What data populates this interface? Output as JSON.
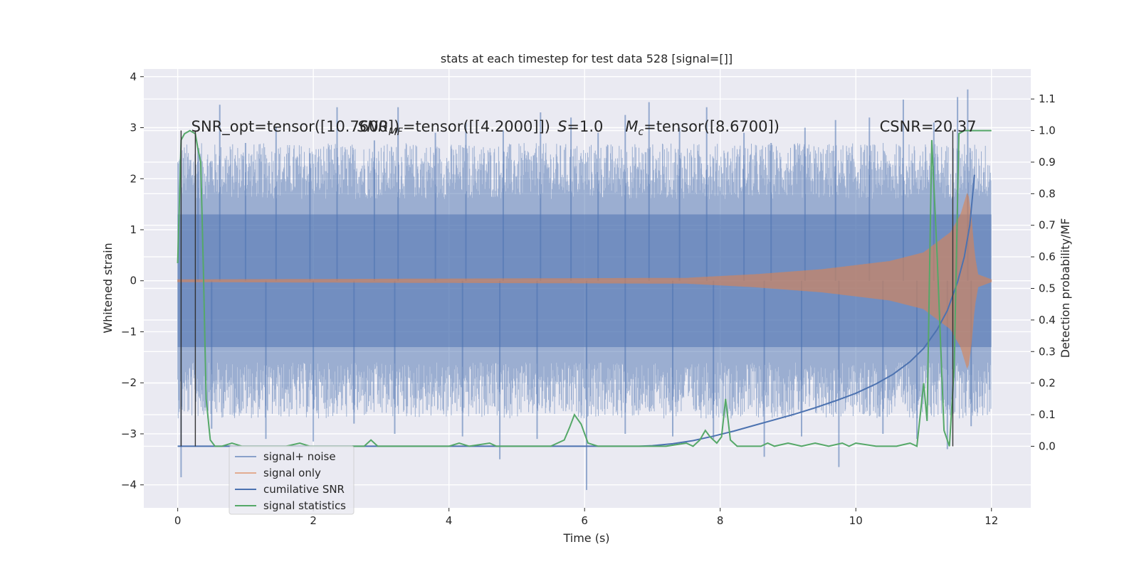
{
  "chart_data": {
    "type": "line",
    "title": "stats at each timestep for test data 528 [signal=[]]",
    "xlabel": "Time (s)",
    "ylabel": "Whitened strain",
    "ylabel_right": "Detection probability/MF",
    "xlim": [
      -0.5,
      12.58
    ],
    "ylim": [
      -4.45,
      4.15
    ],
    "ylim_right": [
      -0.195,
      1.195
    ],
    "xticks": [
      0,
      2,
      4,
      6,
      8,
      10,
      12
    ],
    "yticks": [
      -4,
      -3,
      -2,
      -1,
      0,
      1,
      2,
      3,
      4
    ],
    "yticks_right": [
      0.0,
      0.1,
      0.2,
      0.3,
      0.4,
      0.5,
      0.6,
      0.7,
      0.8,
      0.9,
      1.0,
      1.1
    ],
    "grid": true,
    "legend_position": "lower-left",
    "annotations": [
      {
        "text": "SNR_opt=tensor([10.7600])",
        "x": 0.2
      },
      {
        "text": "SNR_MF=tensor([[4.2000]])",
        "x": 2.65
      },
      {
        "text": "S=1.0",
        "x": 5.6
      },
      {
        "text": "M_c=tensor([8.6700])",
        "x": 6.6
      },
      {
        "text": "CSNR=20.37",
        "x": 10.35
      }
    ],
    "vertical_lines": [
      0.05,
      0.26,
      11.43
    ],
    "series": [
      {
        "name": "signal+ noise",
        "axis": "left",
        "color": "#4c72b0",
        "style": "noise-band",
        "t_range": [
          0,
          12
        ],
        "envelope": 1.3,
        "spikes_up": [
          [
            0.3,
            2.6
          ],
          [
            0.62,
            3.45
          ],
          [
            1.0,
            2.7
          ],
          [
            1.45,
            3.0
          ],
          [
            1.95,
            2.5
          ],
          [
            2.35,
            3.4
          ],
          [
            2.9,
            2.75
          ],
          [
            3.25,
            3.4
          ],
          [
            3.8,
            2.9
          ],
          [
            4.25,
            3.1
          ],
          [
            4.8,
            2.95
          ],
          [
            5.35,
            3.3
          ],
          [
            5.8,
            3.2
          ],
          [
            6.2,
            2.9
          ],
          [
            6.6,
            3.25
          ],
          [
            6.95,
            3.5
          ],
          [
            7.4,
            3.0
          ],
          [
            7.8,
            3.4
          ],
          [
            8.35,
            2.9
          ],
          [
            8.75,
            2.7
          ],
          [
            9.25,
            3.0
          ],
          [
            9.7,
            3.15
          ],
          [
            10.2,
            3.2
          ],
          [
            10.7,
            3.55
          ],
          [
            11.15,
            3.1
          ],
          [
            11.5,
            3.6
          ],
          [
            11.65,
            3.75
          ]
        ],
        "spikes_down": [
          [
            0.05,
            -3.85
          ],
          [
            0.5,
            -2.9
          ],
          [
            1.3,
            -3.1
          ],
          [
            2.0,
            -3.15
          ],
          [
            2.6,
            -2.8
          ],
          [
            3.2,
            -3.0
          ],
          [
            4.2,
            -3.05
          ],
          [
            4.75,
            -3.5
          ],
          [
            5.3,
            -3.1
          ],
          [
            6.03,
            -4.1
          ],
          [
            6.6,
            -3.0
          ],
          [
            7.3,
            -3.05
          ],
          [
            7.9,
            -3.1
          ],
          [
            8.65,
            -3.45
          ],
          [
            9.2,
            -3.05
          ],
          [
            9.75,
            -3.65
          ],
          [
            10.4,
            -3.0
          ],
          [
            10.9,
            -3.1
          ],
          [
            11.35,
            -3.3
          ],
          [
            11.7,
            -2.85
          ]
        ]
      },
      {
        "name": "signal only",
        "axis": "left",
        "color": "#dd8452",
        "style": "chirp-band",
        "t_merger": 11.65,
        "t_end": 12,
        "envelope": [
          [
            0,
            0.02
          ],
          [
            7.5,
            0.05
          ],
          [
            8.5,
            0.12
          ],
          [
            9.5,
            0.22
          ],
          [
            10.5,
            0.38
          ],
          [
            11.0,
            0.55
          ],
          [
            11.4,
            0.95
          ],
          [
            11.55,
            1.3
          ],
          [
            11.65,
            1.75
          ],
          [
            11.7,
            1.25
          ],
          [
            11.75,
            0.5
          ],
          [
            11.8,
            0.12
          ],
          [
            12.0,
            0.02
          ]
        ]
      },
      {
        "name": "cumilative SNR",
        "axis": "right",
        "color": "#4c72b0",
        "x": [
          0,
          6.8,
          7.0,
          7.3,
          7.6,
          7.9,
          8.2,
          8.5,
          8.8,
          9.1,
          9.4,
          9.7,
          10.0,
          10.3,
          10.55,
          10.8,
          11.0,
          11.2,
          11.35,
          11.5,
          11.6,
          11.68,
          11.75
        ],
        "y": [
          0.0,
          0.0,
          0.002,
          0.008,
          0.018,
          0.032,
          0.048,
          0.066,
          0.084,
          0.102,
          0.122,
          0.144,
          0.168,
          0.198,
          0.228,
          0.268,
          0.31,
          0.37,
          0.43,
          0.52,
          0.6,
          0.7,
          0.86
        ]
      },
      {
        "name": "signal statistics",
        "axis": "right",
        "color": "#55a868",
        "x": [
          0,
          0.05,
          0.1,
          0.18,
          0.26,
          0.3,
          0.34,
          0.38,
          0.42,
          0.48,
          0.55,
          0.65,
          0.8,
          0.95,
          1.1,
          1.3,
          1.6,
          1.8,
          1.95,
          2.1,
          2.3,
          2.5,
          2.75,
          2.85,
          2.95,
          3.1,
          3.5,
          4.0,
          4.15,
          4.3,
          4.6,
          4.7,
          4.85,
          5.2,
          5.5,
          5.7,
          5.78,
          5.85,
          5.95,
          6.05,
          6.2,
          6.6,
          6.9,
          7.2,
          7.5,
          7.6,
          7.7,
          7.78,
          7.85,
          7.95,
          8.02,
          8.08,
          8.15,
          8.25,
          8.4,
          8.6,
          8.7,
          8.8,
          9.0,
          9.2,
          9.4,
          9.6,
          9.8,
          9.9,
          10.0,
          10.3,
          10.6,
          10.8,
          10.9,
          11.0,
          11.05,
          11.12,
          11.2,
          11.3,
          11.38,
          11.45,
          11.52,
          11.6,
          11.75,
          12.0
        ],
        "y": [
          0.58,
          0.97,
          0.99,
          1.0,
          0.99,
          0.94,
          0.9,
          0.55,
          0.15,
          0.02,
          0.0,
          0.0,
          0.01,
          0.0,
          0.0,
          0.0,
          0.0,
          0.01,
          0.0,
          0.0,
          0.0,
          0.0,
          0.0,
          0.02,
          0.0,
          0.0,
          0.0,
          0.0,
          0.01,
          0.0,
          0.01,
          0.0,
          0.0,
          0.0,
          0.0,
          0.02,
          0.06,
          0.1,
          0.07,
          0.01,
          0.0,
          0.0,
          0.0,
          0.0,
          0.01,
          0.0,
          0.02,
          0.05,
          0.03,
          0.01,
          0.03,
          0.15,
          0.02,
          0.0,
          0.0,
          0.0,
          0.01,
          0.0,
          0.01,
          0.0,
          0.01,
          0.0,
          0.01,
          0.0,
          0.01,
          0.0,
          0.0,
          0.01,
          0.0,
          0.2,
          0.08,
          0.97,
          0.6,
          0.05,
          0.0,
          0.25,
          0.99,
          1.0,
          1.0,
          1.0
        ]
      }
    ]
  }
}
